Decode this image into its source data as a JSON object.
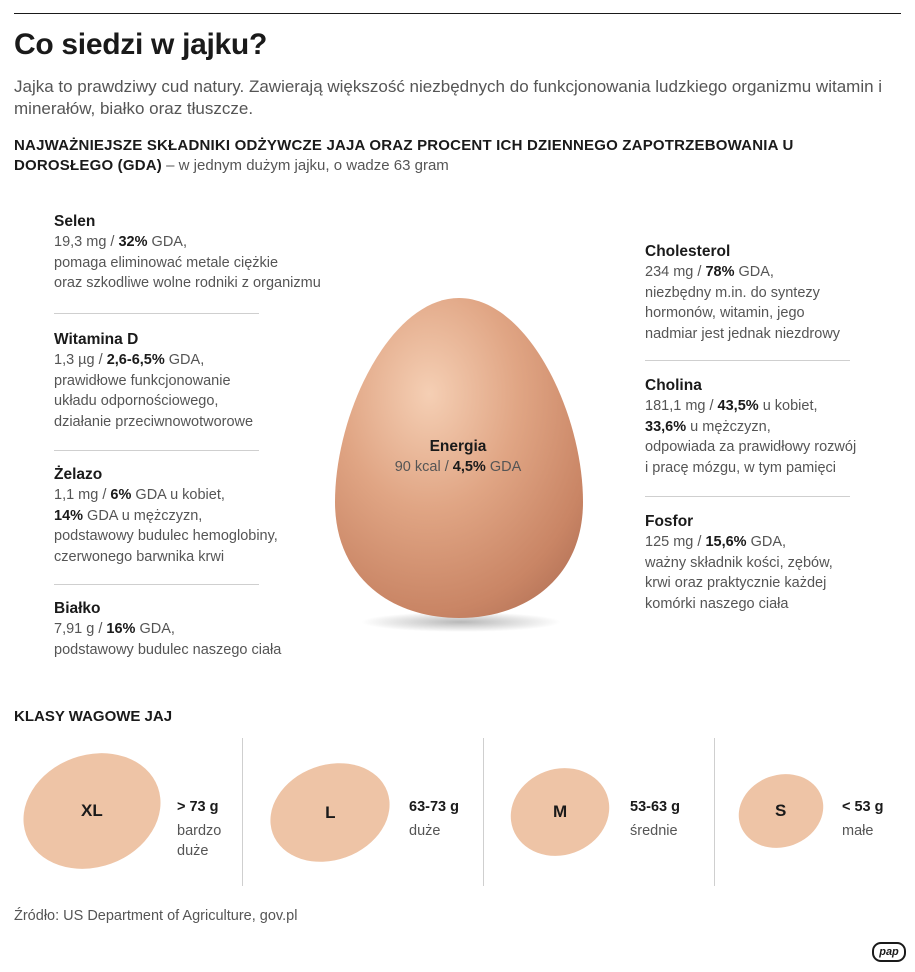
{
  "title": "Co siedzi w jajku?",
  "intro": "Jajka to prawdziwy cud natury. Zawierają większość niezbędnych do funkcjonowania ludzkiego organizmu witamin i minerałów, białko oraz tłuszcze.",
  "subheading": {
    "main": "NAJWAŻNIEJSZE SKŁADNIKI ODŻYWCZE JAJA ORAZ PROCENT ICH DZIENNEGO ZAPOTRZEBOWANIA U DOROSŁEGO (GDA)",
    "note": " – w jednym dużym jajku, o wadze 63 gram"
  },
  "nutrients_left": [
    {
      "name": "Selen",
      "amount": "19,3 mg / ",
      "percent": "32%",
      "gda": " GDA,",
      "desc1": "pomaga eliminować metale ciężkie",
      "desc2": "oraz szkodliwe wolne rodniki z organizmu"
    },
    {
      "name": "Witamina D",
      "amount": "1,3 µg / ",
      "percent": "2,6-6,5%",
      "gda": " GDA,",
      "desc1": "prawidłowe funkcjonowanie",
      "desc2": "układu odpornościowego,",
      "desc3": "działanie przeciwnowotworowe"
    },
    {
      "name": "Żelazo",
      "amount": "1,1 mg / ",
      "percent": "6%",
      "gda": " GDA u kobiet,",
      "percent2": "14%",
      "gda2": " GDA u mężczyzn,",
      "desc1": "podstawowy budulec hemoglobiny,",
      "desc2": "czerwonego barwnika krwi"
    },
    {
      "name": "Białko",
      "amount": "7,91 g / ",
      "percent": "16%",
      "gda": " GDA,",
      "desc1": "podstawowy budulec naszego ciała"
    }
  ],
  "nutrients_right": [
    {
      "name": "Cholesterol",
      "amount": "234 mg / ",
      "percent": "78%",
      "gda": " GDA,",
      "desc1": "niezbędny m.in. do syntezy",
      "desc2": "hormonów, witamin, jego",
      "desc3": "nadmiar jest jednak niezdrowy"
    },
    {
      "name": "Cholina",
      "amount": "181,1 mg / ",
      "percent": "43,5%",
      "gda": " u kobiet,",
      "percent2": "33,6%",
      "gda2": " u mężczyzn,",
      "desc1": "odpowiada za prawidłowy rozwój",
      "desc2": "i pracę mózgu, w tym pamięci"
    },
    {
      "name": "Fosfor",
      "amount": "125 mg / ",
      "percent": "15,6%",
      "gda": " GDA,",
      "desc1": "ważny składnik kości, zębów,",
      "desc2": "krwi oraz praktycznie każdej",
      "desc3": "komórki naszego ciała"
    }
  ],
  "energy": {
    "name": "Energia",
    "amount": "90 kcal / ",
    "percent": "4,5%",
    "gda": " GDA"
  },
  "weight_classes_title": "KLASY WAGOWE JAJ",
  "weight_classes": [
    {
      "label": "XL",
      "range": "> 73 g",
      "desc1": "bardzo",
      "desc2": "duże"
    },
    {
      "label": "L",
      "range": "63-73 g",
      "desc1": "duże"
    },
    {
      "label": "M",
      "range": "53-63 g",
      "desc1": "średnie"
    },
    {
      "label": "S",
      "range": "< 53 g",
      "desc1": "małe"
    }
  ],
  "source": "Źródło: US Department of Agriculture, gov.pl",
  "logo": "pap",
  "colors": {
    "egg_small": "#eec4a6",
    "egg_big": "#d99a78",
    "text_dark": "#1a1a1a",
    "text_gray": "#555555"
  }
}
